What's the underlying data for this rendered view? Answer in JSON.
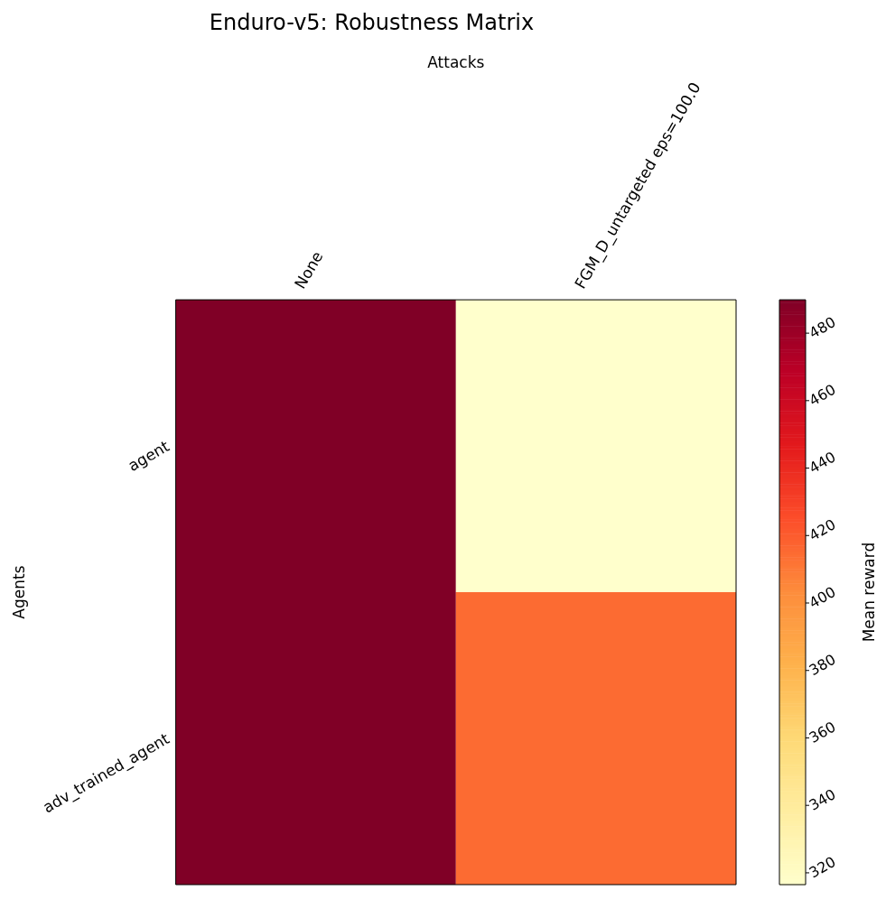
{
  "chart_data": {
    "type": "heatmap",
    "title": "Enduro-v5: Robustness Matrix",
    "xlabel": "Attacks",
    "ylabel": "Agents",
    "clabel": "Mean reward",
    "categories": [
      "None",
      "FGM_D_untargeted eps=100.0"
    ],
    "y_categories": [
      "agent",
      "adv_trained_agent"
    ],
    "cells": [
      [
        489.9,
        316.5
      ],
      [
        489.9,
        415
      ]
    ],
    "clim": [
      316.5,
      489.9
    ],
    "cticks": [
      320,
      340,
      360,
      380,
      400,
      420,
      440,
      460,
      480
    ]
  }
}
